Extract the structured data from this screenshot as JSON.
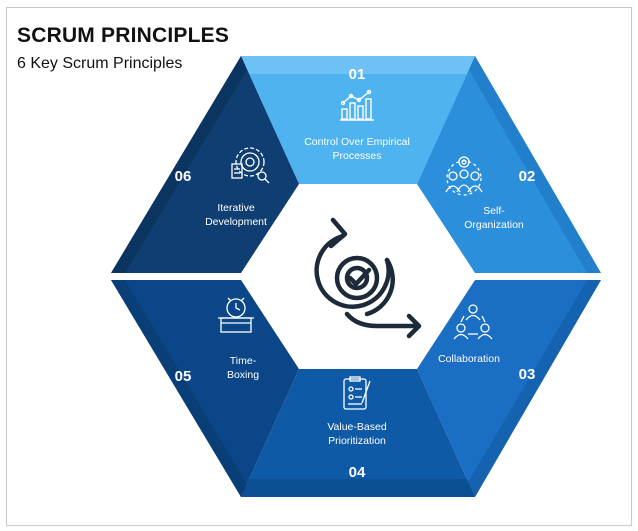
{
  "header": {
    "title": "SCRUM PRINCIPLES",
    "subtitle": "6 Key Scrum Principles"
  },
  "principles": [
    {
      "number": "01",
      "label_lines": [
        "Control Over Empirical",
        "Processes"
      ],
      "icon": "line-chart-icon",
      "color": "#4fb3f0"
    },
    {
      "number": "02",
      "label_lines": [
        "Self-",
        "Organization"
      ],
      "icon": "team-gear-icon",
      "color": "#2c8fdc"
    },
    {
      "number": "03",
      "label_lines": [
        "Collaboration"
      ],
      "icon": "people-cycle-icon",
      "color": "#1a6fc4"
    },
    {
      "number": "04",
      "label_lines": [
        "Value-Based",
        "Prioritization"
      ],
      "icon": "clipboard-list-icon",
      "color": "#0e5aa7"
    },
    {
      "number": "05",
      "label_lines": [
        "Time-",
        "Boxing"
      ],
      "icon": "alarm-clock-box-icon",
      "color": "#0b4788"
    },
    {
      "number": "06",
      "label_lines": [
        "Iterative",
        "Development"
      ],
      "icon": "target-gear-icon",
      "color": "#0f3f72"
    }
  ],
  "center": {
    "icon": "cycle-check-icon",
    "color": "#1c2a3a"
  }
}
